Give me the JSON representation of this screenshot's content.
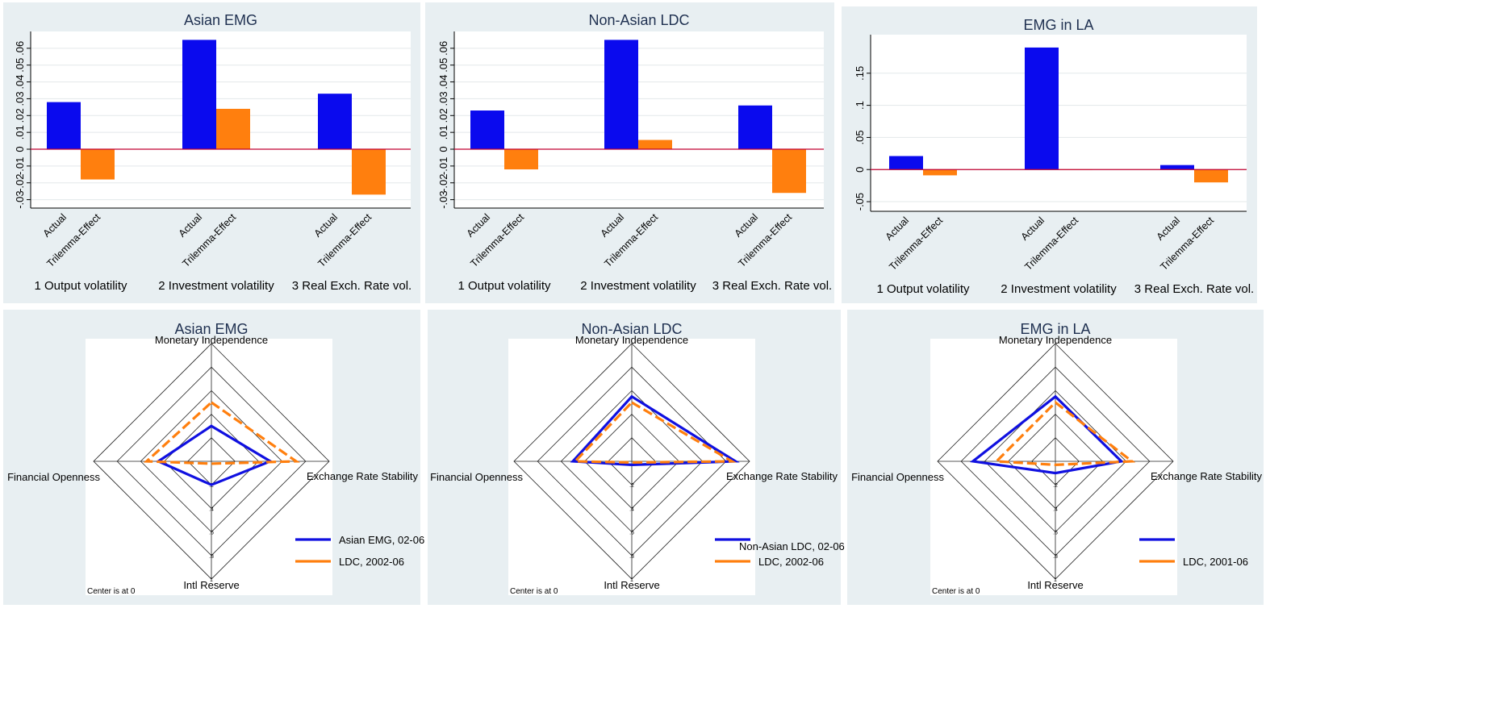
{
  "colors": {
    "actual": "#0a0aee",
    "trilemma": "#ff7f0e",
    "zero_line": "#c00030",
    "panel_bg": "#e8eff2",
    "radar_blue": "#1010e0",
    "radar_orange": "#ff7f0e"
  },
  "group_labels": [
    "1 Output volatility",
    "2 Investment volatility",
    "3 Real Exch. Rate vol."
  ],
  "bar_labels": [
    "Actual",
    "Trilemma-Effect"
  ],
  "radar_axis_labels": {
    "top": "Monetary Independence",
    "right": "Exchange Rate Stability",
    "bottom": "Intl Reserve",
    "left": "Financial Openness"
  },
  "radar_ring_labels": [
    ".2",
    ".4",
    ".6",
    ".8",
    "1"
  ],
  "center_note": "Center is at 0",
  "chart_data": [
    {
      "type": "bar",
      "title": "Asian EMG",
      "categories": [
        "1 Output volatility",
        "2 Investment volatility",
        "3 Real Exch. Rate vol."
      ],
      "series": [
        {
          "name": "Actual",
          "values": [
            0.028,
            0.065,
            0.033
          ]
        },
        {
          "name": "Trilemma-Effect",
          "values": [
            -0.018,
            0.024,
            -0.027
          ]
        }
      ],
      "ylim": [
        -0.035,
        0.07
      ],
      "yticks": [
        -0.03,
        -0.02,
        -0.01,
        0,
        0.01,
        0.02,
        0.03,
        0.04,
        0.05,
        0.06
      ],
      "ytick_labels": [
        "-.03",
        "-.02",
        "-.01",
        "0",
        ".01",
        ".02",
        ".03",
        ".04",
        ".05",
        ".06"
      ],
      "grid": true
    },
    {
      "type": "bar",
      "title": "Non-Asian LDC",
      "categories": [
        "1 Output volatility",
        "2 Investment volatility",
        "3 Real Exch. Rate vol."
      ],
      "series": [
        {
          "name": "Actual",
          "values": [
            0.023,
            0.065,
            0.026
          ]
        },
        {
          "name": "Trilemma-Effect",
          "values": [
            -0.012,
            0.0055,
            -0.026
          ]
        }
      ],
      "ylim": [
        -0.035,
        0.07
      ],
      "yticks": [
        -0.03,
        -0.02,
        -0.01,
        0,
        0.01,
        0.02,
        0.03,
        0.04,
        0.05,
        0.06
      ],
      "ytick_labels": [
        "-.03",
        "-.02",
        "-.01",
        "0",
        ".01",
        ".02",
        ".03",
        ".04",
        ".05",
        ".06"
      ],
      "grid": true
    },
    {
      "type": "bar",
      "title": "EMG in LA",
      "categories": [
        "1 Output volatility",
        "2 Investment volatility",
        "3 Real Exch. Rate vol."
      ],
      "series": [
        {
          "name": "Actual",
          "values": [
            0.021,
            0.19,
            0.007
          ]
        },
        {
          "name": "Trilemma-Effect",
          "values": [
            -0.009,
            0.0,
            -0.02
          ]
        }
      ],
      "ylim": [
        -0.065,
        0.21
      ],
      "yticks": [
        -0.05,
        0,
        0.05,
        0.1,
        0.15
      ],
      "ytick_labels": [
        "-.05",
        "0",
        ".05",
        ".1",
        ".15"
      ],
      "grid": true
    },
    {
      "type": "radar",
      "title": "Asian EMG",
      "axes": [
        "Monetary Independence",
        "Exchange Rate Stability",
        "Intl Reserve",
        "Financial Openness"
      ],
      "range": [
        0,
        1
      ],
      "series": [
        {
          "name": "Asian EMG, 02-06",
          "style": "solid",
          "values": [
            0.3,
            0.5,
            0.2,
            0.45
          ]
        },
        {
          "name": "LDC, 2002-06",
          "style": "dashed",
          "values": [
            0.5,
            0.72,
            0.02,
            0.55
          ]
        }
      ]
    },
    {
      "type": "radar",
      "title": "Non-Asian LDC",
      "axes": [
        "Monetary Independence",
        "Exchange Rate Stability",
        "Intl Reserve",
        "Financial Openness"
      ],
      "range": [
        0,
        1
      ],
      "series": [
        {
          "name": "Non-Asian LDC, 02-06",
          "style": "solid",
          "values": [
            0.55,
            0.88,
            0.03,
            0.5
          ]
        },
        {
          "name": "LDC, 2002-06",
          "style": "dashed",
          "values": [
            0.5,
            0.85,
            0.01,
            0.48
          ]
        }
      ]
    },
    {
      "type": "radar",
      "title": "EMG in LA",
      "axes": [
        "Monetary Independence",
        "Exchange Rate Stability",
        "Intl Reserve",
        "Financial Openness"
      ],
      "range": [
        0,
        1
      ],
      "series": [
        {
          "name": "",
          "style": "solid",
          "values": [
            0.55,
            0.56,
            0.1,
            0.7
          ]
        },
        {
          "name": "LDC, 2001-06",
          "style": "dashed",
          "values": [
            0.5,
            0.65,
            0.03,
            0.5
          ]
        }
      ]
    }
  ]
}
